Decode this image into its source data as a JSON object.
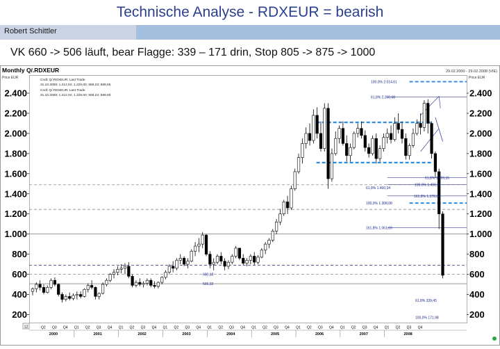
{
  "slide": {
    "title": "Technische Analyse - RDXEUR = bearish",
    "author": "Robert Schittler",
    "subtitle": "VK 660 -> 506 läuft, bear Flagge: 339 – 171 drin, Stop 805 -> 875 -> 1000"
  },
  "chart_data": {
    "type": "candlestick",
    "title": "Monthly Q/.RDXEUR",
    "date_range": "29.02.2000 - 29.02.2008 (VIE)",
    "ylabel_left": "Price EUR",
    "ylabel_right": "Price EUR",
    "legend": [
      "Cndl; Q/.RDXEUR; Last Trade",
      "31.10.2008; 1.212,04; 1.225,00; 559,23; 589,65",
      "Cndl; Q/.RDXEUR; Last Trade",
      "31.10.2008; 1.212,04; 1.225,00; 559,23; 589,65"
    ],
    "ylim": [
      120,
      2580
    ],
    "y_ticks": [
      200,
      400,
      600,
      800,
      1000,
      1200,
      1400,
      1600,
      1800,
      2000,
      2200,
      2400
    ],
    "y_tick_labels": [
      "200",
      "400",
      "600",
      "800",
      "1.000",
      "1.200",
      "1.400",
      "1.600",
      "1.800",
      "2.000",
      "2.200",
      "2.400"
    ],
    "scale_box_label": "12",
    "x_years": [
      "2000",
      "2001",
      "2002",
      "2003",
      "2004",
      "2005",
      "2006",
      "2007",
      "2008"
    ],
    "quarters": [
      "Q2",
      "Q3",
      "Q4",
      "Q1",
      "Q2",
      "Q3",
      "Q4",
      "Q1",
      "Q2",
      "Q3",
      "Q4",
      "Q1",
      "Q2",
      "Q3",
      "Q4",
      "Q1",
      "Q2",
      "Q3",
      "Q4",
      "Q1",
      "Q2",
      "Q3",
      "Q4",
      "Q1",
      "Q2",
      "Q3",
      "Q4",
      "Q1",
      "Q2",
      "Q3",
      "Q4",
      "Q1",
      "Q2",
      "Q3",
      "Q4"
    ],
    "levels": [
      {
        "y": 2514.6,
        "label": "100,0% 2.514,61",
        "style": "dash-blue-bold"
      },
      {
        "y": 2360.7,
        "label": "61,8%  2.360,68",
        "style": "solid-thin"
      },
      {
        "y": 1559.2,
        "label": "61,8%  1.559,16",
        "style": "solid-thin"
      },
      {
        "y": 1490.3,
        "label": "100,0% 1.490,27",
        "style": "solid-thin"
      },
      {
        "y": 1378.8,
        "label": "161,8% 1.378,82",
        "style": "solid-thin"
      },
      {
        "y": 1308.1,
        "label": "100,0% 1.308,08",
        "style": "dash-blue-bold"
      },
      {
        "y": 1460.3,
        "label": "61,8%  1.460,34",
        "style": "none"
      },
      {
        "y": 1061.7,
        "label": "161,8% 1.061,69",
        "style": "solid-thin"
      },
      {
        "y": 339.5,
        "label": "61,8%  339,45",
        "style": "none"
      },
      {
        "y": 172.0,
        "label": "100,0% 171,98",
        "style": "none"
      }
    ],
    "h_lines": [
      {
        "y": 1490,
        "style": "dash-gray"
      },
      {
        "y": 1245,
        "style": "dash-gray"
      },
      {
        "y": 690,
        "style": "dash-navy"
      },
      {
        "y": 600,
        "style": "dash-gray"
      },
      {
        "y": 506,
        "style": "solid-gray"
      },
      {
        "y": 1000,
        "style": "solid-gray"
      }
    ],
    "line_labels": [
      {
        "y": 600,
        "label": "600,18"
      },
      {
        "y": 506,
        "label": "506,02"
      }
    ],
    "flag_box": {
      "top": 2110,
      "bottom": 1710
    },
    "candles": [
      {
        "o": 430,
        "h": 470,
        "l": 390,
        "c": 455
      },
      {
        "o": 455,
        "h": 520,
        "l": 420,
        "c": 500
      },
      {
        "o": 500,
        "h": 540,
        "l": 440,
        "c": 470
      },
      {
        "o": 470,
        "h": 500,
        "l": 400,
        "c": 420
      },
      {
        "o": 420,
        "h": 490,
        "l": 410,
        "c": 470
      },
      {
        "o": 470,
        "h": 560,
        "l": 450,
        "c": 540
      },
      {
        "o": 540,
        "h": 570,
        "l": 480,
        "c": 500
      },
      {
        "o": 500,
        "h": 510,
        "l": 380,
        "c": 400
      },
      {
        "o": 400,
        "h": 420,
        "l": 320,
        "c": 350
      },
      {
        "o": 350,
        "h": 400,
        "l": 330,
        "c": 380
      },
      {
        "o": 380,
        "h": 420,
        "l": 340,
        "c": 360
      },
      {
        "o": 360,
        "h": 410,
        "l": 340,
        "c": 390
      },
      {
        "o": 390,
        "h": 430,
        "l": 350,
        "c": 400
      },
      {
        "o": 400,
        "h": 430,
        "l": 360,
        "c": 380
      },
      {
        "o": 380,
        "h": 460,
        "l": 370,
        "c": 450
      },
      {
        "o": 450,
        "h": 510,
        "l": 420,
        "c": 490
      },
      {
        "o": 490,
        "h": 540,
        "l": 450,
        "c": 470
      },
      {
        "o": 470,
        "h": 480,
        "l": 350,
        "c": 380
      },
      {
        "o": 380,
        "h": 420,
        "l": 350,
        "c": 410
      },
      {
        "o": 410,
        "h": 520,
        "l": 400,
        "c": 500
      },
      {
        "o": 500,
        "h": 560,
        "l": 480,
        "c": 540
      },
      {
        "o": 540,
        "h": 610,
        "l": 520,
        "c": 600
      },
      {
        "o": 600,
        "h": 650,
        "l": 560,
        "c": 620
      },
      {
        "o": 620,
        "h": 680,
        "l": 590,
        "c": 650
      },
      {
        "o": 650,
        "h": 700,
        "l": 610,
        "c": 660
      },
      {
        "o": 660,
        "h": 710,
        "l": 600,
        "c": 680
      },
      {
        "o": 680,
        "h": 720,
        "l": 560,
        "c": 580
      },
      {
        "o": 580,
        "h": 600,
        "l": 470,
        "c": 490
      },
      {
        "o": 490,
        "h": 540,
        "l": 470,
        "c": 520
      },
      {
        "o": 520,
        "h": 560,
        "l": 480,
        "c": 500
      },
      {
        "o": 500,
        "h": 530,
        "l": 470,
        "c": 510
      },
      {
        "o": 510,
        "h": 560,
        "l": 490,
        "c": 540
      },
      {
        "o": 540,
        "h": 560,
        "l": 470,
        "c": 490
      },
      {
        "o": 490,
        "h": 530,
        "l": 460,
        "c": 480
      },
      {
        "o": 480,
        "h": 530,
        "l": 460,
        "c": 520
      },
      {
        "o": 520,
        "h": 580,
        "l": 500,
        "c": 570
      },
      {
        "o": 570,
        "h": 640,
        "l": 550,
        "c": 620
      },
      {
        "o": 620,
        "h": 700,
        "l": 600,
        "c": 680
      },
      {
        "o": 680,
        "h": 730,
        "l": 620,
        "c": 660
      },
      {
        "o": 660,
        "h": 760,
        "l": 640,
        "c": 740
      },
      {
        "o": 740,
        "h": 800,
        "l": 700,
        "c": 760
      },
      {
        "o": 760,
        "h": 780,
        "l": 680,
        "c": 700
      },
      {
        "o": 700,
        "h": 760,
        "l": 660,
        "c": 730
      },
      {
        "o": 730,
        "h": 850,
        "l": 720,
        "c": 830
      },
      {
        "o": 830,
        "h": 920,
        "l": 780,
        "c": 880
      },
      {
        "o": 880,
        "h": 960,
        "l": 820,
        "c": 900
      },
      {
        "o": 900,
        "h": 1020,
        "l": 860,
        "c": 990
      },
      {
        "o": 990,
        "h": 1000,
        "l": 780,
        "c": 800
      },
      {
        "o": 800,
        "h": 830,
        "l": 660,
        "c": 700
      },
      {
        "o": 700,
        "h": 760,
        "l": 640,
        "c": 720
      },
      {
        "o": 720,
        "h": 800,
        "l": 700,
        "c": 780
      },
      {
        "o": 780,
        "h": 820,
        "l": 700,
        "c": 730
      },
      {
        "o": 730,
        "h": 760,
        "l": 640,
        "c": 680
      },
      {
        "o": 680,
        "h": 740,
        "l": 650,
        "c": 720
      },
      {
        "o": 720,
        "h": 800,
        "l": 700,
        "c": 780
      },
      {
        "o": 780,
        "h": 880,
        "l": 760,
        "c": 860
      },
      {
        "o": 860,
        "h": 860,
        "l": 740,
        "c": 760
      },
      {
        "o": 760,
        "h": 800,
        "l": 690,
        "c": 710
      },
      {
        "o": 710,
        "h": 760,
        "l": 680,
        "c": 740
      },
      {
        "o": 740,
        "h": 800,
        "l": 700,
        "c": 780
      },
      {
        "o": 780,
        "h": 820,
        "l": 690,
        "c": 720
      },
      {
        "o": 720,
        "h": 790,
        "l": 700,
        "c": 770
      },
      {
        "o": 770,
        "h": 860,
        "l": 760,
        "c": 840
      },
      {
        "o": 840,
        "h": 920,
        "l": 800,
        "c": 900
      },
      {
        "o": 900,
        "h": 960,
        "l": 860,
        "c": 940
      },
      {
        "o": 940,
        "h": 1050,
        "l": 920,
        "c": 1030
      },
      {
        "o": 1030,
        "h": 1150,
        "l": 1000,
        "c": 1120
      },
      {
        "o": 1120,
        "h": 1250,
        "l": 1090,
        "c": 1200
      },
      {
        "o": 1200,
        "h": 1340,
        "l": 1180,
        "c": 1320
      },
      {
        "o": 1320,
        "h": 1380,
        "l": 1200,
        "c": 1260
      },
      {
        "o": 1260,
        "h": 1480,
        "l": 1240,
        "c": 1450
      },
      {
        "o": 1450,
        "h": 1650,
        "l": 1430,
        "c": 1620
      },
      {
        "o": 1620,
        "h": 1800,
        "l": 1600,
        "c": 1760
      },
      {
        "o": 1760,
        "h": 1950,
        "l": 1700,
        "c": 1900
      },
      {
        "o": 1900,
        "h": 2060,
        "l": 1850,
        "c": 2000
      },
      {
        "o": 2000,
        "h": 2100,
        "l": 1880,
        "c": 1930
      },
      {
        "o": 1930,
        "h": 2240,
        "l": 1900,
        "c": 2180
      },
      {
        "o": 2180,
        "h": 2260,
        "l": 1950,
        "c": 2000
      },
      {
        "o": 2000,
        "h": 2120,
        "l": 1820,
        "c": 1850
      },
      {
        "o": 1850,
        "h": 2300,
        "l": 1820,
        "c": 2250
      },
      {
        "o": 2250,
        "h": 2300,
        "l": 1450,
        "c": 1550
      },
      {
        "o": 1550,
        "h": 1850,
        "l": 1520,
        "c": 1800
      },
      {
        "o": 1800,
        "h": 2020,
        "l": 1780,
        "c": 1950
      },
      {
        "o": 1950,
        "h": 2080,
        "l": 1900,
        "c": 2050
      },
      {
        "o": 2050,
        "h": 2120,
        "l": 1880,
        "c": 1900
      },
      {
        "o": 1900,
        "h": 1980,
        "l": 1720,
        "c": 1780
      },
      {
        "o": 1780,
        "h": 1900,
        "l": 1720,
        "c": 1860
      },
      {
        "o": 1860,
        "h": 2020,
        "l": 1840,
        "c": 2000
      },
      {
        "o": 2000,
        "h": 2100,
        "l": 1960,
        "c": 2050
      },
      {
        "o": 2050,
        "h": 2120,
        "l": 1950,
        "c": 1980
      },
      {
        "o": 1980,
        "h": 2030,
        "l": 1820,
        "c": 1860
      },
      {
        "o": 1860,
        "h": 1900,
        "l": 1760,
        "c": 1800
      },
      {
        "o": 1800,
        "h": 1980,
        "l": 1780,
        "c": 1950
      },
      {
        "o": 1950,
        "h": 2000,
        "l": 1700,
        "c": 1750
      },
      {
        "o": 1750,
        "h": 1880,
        "l": 1720,
        "c": 1850
      },
      {
        "o": 1850,
        "h": 2000,
        "l": 1820,
        "c": 1960
      },
      {
        "o": 1960,
        "h": 2050,
        "l": 1900,
        "c": 2000
      },
      {
        "o": 2000,
        "h": 2080,
        "l": 1900,
        "c": 1940
      },
      {
        "o": 1940,
        "h": 2160,
        "l": 1920,
        "c": 2100
      },
      {
        "o": 2100,
        "h": 2200,
        "l": 2000,
        "c": 2040
      },
      {
        "o": 2040,
        "h": 2120,
        "l": 1900,
        "c": 1950
      },
      {
        "o": 1950,
        "h": 2000,
        "l": 1740,
        "c": 1780
      },
      {
        "o": 1780,
        "h": 1900,
        "l": 1740,
        "c": 1880
      },
      {
        "o": 1880,
        "h": 2050,
        "l": 1860,
        "c": 2000
      },
      {
        "o": 2000,
        "h": 2140,
        "l": 1980,
        "c": 2100
      },
      {
        "o": 2100,
        "h": 2200,
        "l": 1990,
        "c": 2060
      },
      {
        "o": 2060,
        "h": 2330,
        "l": 2020,
        "c": 2300
      },
      {
        "o": 2300,
        "h": 2340,
        "l": 2000,
        "c": 2100
      },
      {
        "o": 2100,
        "h": 2120,
        "l": 1750,
        "c": 1800
      },
      {
        "o": 1800,
        "h": 1820,
        "l": 1560,
        "c": 1620
      },
      {
        "o": 1620,
        "h": 1650,
        "l": 1050,
        "c": 1200
      },
      {
        "o": 1200,
        "h": 1225,
        "l": 559,
        "c": 590
      }
    ],
    "flag_channel": {
      "x_from": 105,
      "x_to": 110,
      "upper": [
        2180,
        2370
      ],
      "lower": [
        1820,
        2050
      ]
    },
    "breakout_arrow": {
      "from": [
        109,
        2160
      ],
      "to": [
        111,
        1920
      ]
    }
  }
}
